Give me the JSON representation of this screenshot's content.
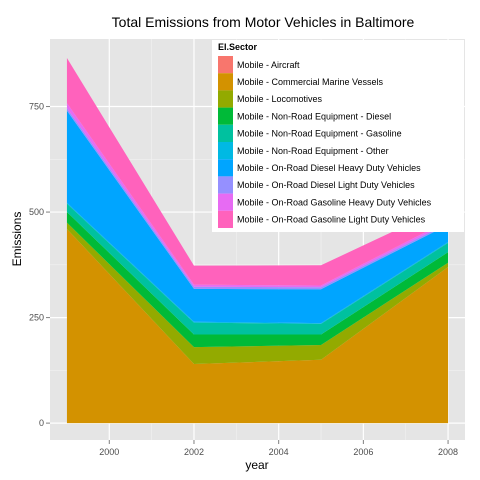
{
  "chart_data": {
    "type": "area",
    "stacked": true,
    "title": "Total Emissions from Motor Vehicles in Baltimore",
    "xlabel": "year",
    "ylabel": "Emissions",
    "x": [
      1999,
      2002,
      2005,
      2008
    ],
    "xlim": [
      1998.6,
      2008.4
    ],
    "ylim": [
      -40,
      910
    ],
    "x_ticks": [
      2000,
      2002,
      2004,
      2006,
      2008
    ],
    "y_ticks": [
      0,
      250,
      500,
      750
    ],
    "grid": true,
    "legend": {
      "title": "EI.Sector",
      "placement": "top-right, inside plot"
    },
    "series": [
      {
        "name": "Mobile - Aircraft",
        "color": "#F8766D",
        "values": [
          0,
          0,
          0,
          0
        ]
      },
      {
        "name": "Mobile - Commercial Marine Vessels",
        "color": "#D39200",
        "values": [
          460,
          140,
          150,
          370
        ]
      },
      {
        "name": "Mobile - Locomotives",
        "color": "#93AA00",
        "values": [
          15,
          40,
          35,
          10
        ]
      },
      {
        "name": "Mobile - Non-Road Equipment - Diesel",
        "color": "#00BA38",
        "values": [
          25,
          30,
          25,
          25
        ]
      },
      {
        "name": "Mobile - Non-Road Equipment - Gasoline",
        "color": "#00C19F",
        "values": [
          20,
          28,
          25,
          22
        ]
      },
      {
        "name": "Mobile - Non-Road Equipment - Other",
        "color": "#00B9E3",
        "values": [
          2,
          2,
          2,
          2
        ]
      },
      {
        "name": "Mobile - On-Road Diesel Heavy Duty Vehicles",
        "color": "#00A5FF",
        "values": [
          218,
          78,
          80,
          41
        ]
      },
      {
        "name": "Mobile - On-Road Diesel Light Duty Vehicles",
        "color": "#9590FF",
        "values": [
          6,
          5,
          5,
          4
        ]
      },
      {
        "name": "Mobile - On-Road Gasoline Heavy Duty Vehicles",
        "color": "#E76BF3",
        "values": [
          12,
          5,
          4,
          6
        ]
      },
      {
        "name": "Mobile - On-Road Gasoline Light Duty Vehicles",
        "color": "#FF62BC",
        "values": [
          107,
          45,
          48,
          35
        ]
      }
    ]
  }
}
